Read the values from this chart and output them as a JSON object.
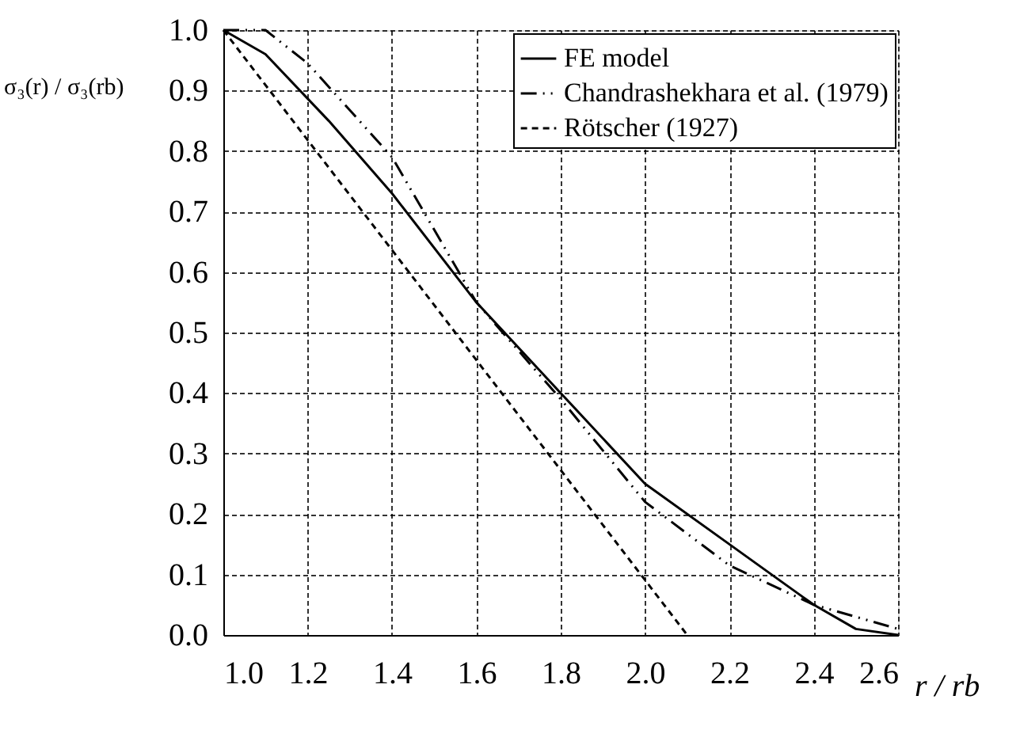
{
  "chart_data": {
    "type": "line",
    "xlabel": "r / rb",
    "ylabel": "σ₃(r) / σ₃(rb)",
    "xlim": [
      1.0,
      2.6
    ],
    "xticks": [
      {
        "value": 1.0,
        "label": "1.0"
      },
      1.2,
      1.4,
      1.6,
      1.8,
      {
        "value": 2.0,
        "label": "2.0"
      },
      2.2,
      2.4,
      2.6
    ],
    "ylim": [
      0.0,
      1.0
    ],
    "yticks": [
      {
        "value": 0.0,
        "label": "0.0"
      },
      0.1,
      0.2,
      0.3,
      0.4,
      0.5,
      0.6,
      0.7,
      0.8,
      0.9,
      {
        "value": 1.0,
        "label": "1.0"
      }
    ],
    "grid": true,
    "legend": "top right",
    "marker": "none",
    "series": [
      {
        "name": "FE model",
        "color": "#000000",
        "line_style": "solid",
        "x": [
          1.0,
          1.1,
          1.25,
          1.4,
          1.6,
          1.8,
          2.0,
          2.2,
          2.3,
          2.4,
          2.5,
          2.6
        ],
        "values": [
          1.0,
          0.96,
          0.85,
          0.73,
          0.55,
          0.4,
          0.25,
          0.15,
          0.1,
          0.05,
          0.01,
          0.0
        ]
      },
      {
        "name": "Chandrashekhara et al. (1979)",
        "color": "#000000",
        "line_style": "dashdotdot",
        "x": [
          1.0,
          1.1,
          1.2,
          1.4,
          1.6,
          1.8,
          2.0,
          2.2,
          2.4,
          2.5,
          2.6
        ],
        "values": [
          1.0,
          1.0,
          0.945,
          0.79,
          0.55,
          0.39,
          0.22,
          0.115,
          0.05,
          0.03,
          0.01
        ]
      },
      {
        "name": "Rötscher (1927)",
        "color": "#000000",
        "line_style": "dashed",
        "x": [
          1.0,
          2.1
        ],
        "values": [
          1.0,
          0.0
        ]
      }
    ]
  }
}
